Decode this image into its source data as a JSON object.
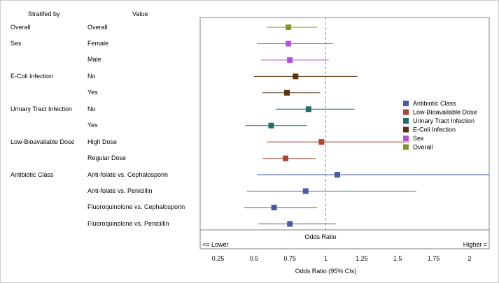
{
  "chart_data": {
    "type": "forest",
    "columns": {
      "stratified_by": "Stratifed by",
      "value": "Value"
    },
    "rows": [
      {
        "group": "Overall",
        "value": "Overall",
        "category": "Overall",
        "or": 0.74,
        "lo": 0.59,
        "hi": 0.94
      },
      {
        "group": "Sex",
        "value": "Female",
        "category": "Sex",
        "or": 0.74,
        "lo": 0.52,
        "hi": 1.05
      },
      {
        "group": "",
        "value": "Male",
        "category": "Sex",
        "or": 0.75,
        "lo": 0.55,
        "hi": 1.02
      },
      {
        "group": "E-Coli Infection",
        "value": "No",
        "category": "E-Coli Infection",
        "or": 0.79,
        "lo": 0.5,
        "hi": 1.22
      },
      {
        "group": "",
        "value": "Yes",
        "category": "E-Coli Infection",
        "or": 0.73,
        "lo": 0.56,
        "hi": 0.96
      },
      {
        "group": "Urinary Tract Infection",
        "value": "No",
        "category": "Urinary Tract Infection",
        "or": 0.88,
        "lo": 0.65,
        "hi": 1.2
      },
      {
        "group": "",
        "value": "Yes",
        "category": "Urinary Tract Infection",
        "or": 0.62,
        "lo": 0.44,
        "hi": 0.87
      },
      {
        "group": "Low-Bioavailable Dose",
        "value": "High Dose",
        "category": "Low-Bioavailable Dose",
        "or": 0.97,
        "lo": 0.59,
        "hi": 1.58
      },
      {
        "group": "",
        "value": "Regular Dose",
        "category": "Low-Bioavailable Dose",
        "or": 0.72,
        "lo": 0.56,
        "hi": 0.93
      },
      {
        "group": "Antibiotic Class",
        "value": "Anti-folate vs. Cephalosporin",
        "category": "Antibiotic Class",
        "or": 1.08,
        "lo": 0.52,
        "hi": 2.15
      },
      {
        "group": "",
        "value": "Anti-folate vs. Penicillin",
        "category": "Antibiotic Class",
        "or": 0.86,
        "lo": 0.45,
        "hi": 1.63
      },
      {
        "group": "",
        "value": "Fluoroquinolone vs. Cephalosporin",
        "category": "Antibiotic Class",
        "or": 0.64,
        "lo": 0.43,
        "hi": 0.94
      },
      {
        "group": "",
        "value": "Fluoroquinolone vs. Penicillin",
        "category": "Antibiotic Class",
        "or": 0.75,
        "lo": 0.53,
        "hi": 1.07
      }
    ],
    "xaxis": {
      "label": "Odds Ratio (95% CIs)",
      "ticks": [
        0.25,
        0.5,
        0.75,
        1,
        1.25,
        1.5,
        1.75,
        2
      ],
      "tick_labels": [
        "0.25",
        "0.5",
        "0.75",
        "1",
        "1.25",
        "1.5",
        "1.75",
        "2"
      ],
      "range": [
        0.12,
        2.15
      ]
    },
    "reference_line": 1,
    "reference_label": "Odds Ratio",
    "lower_label": "<= Lower",
    "higher_label": "Higher =",
    "legend": {
      "placement": "right",
      "items": [
        {
          "name": "Antibiotic Class",
          "color": "#4a5a9c"
        },
        {
          "name": "Low-Bioavailable Dose",
          "color": "#a94438"
        },
        {
          "name": "Urinary Tract Infection",
          "color": "#1f6e6a"
        },
        {
          "name": "E-Coli Infection",
          "color": "#5a3512"
        },
        {
          "name": "Sex",
          "color": "#b552d8"
        },
        {
          "name": "Overall",
          "color": "#86942a"
        }
      ]
    }
  }
}
